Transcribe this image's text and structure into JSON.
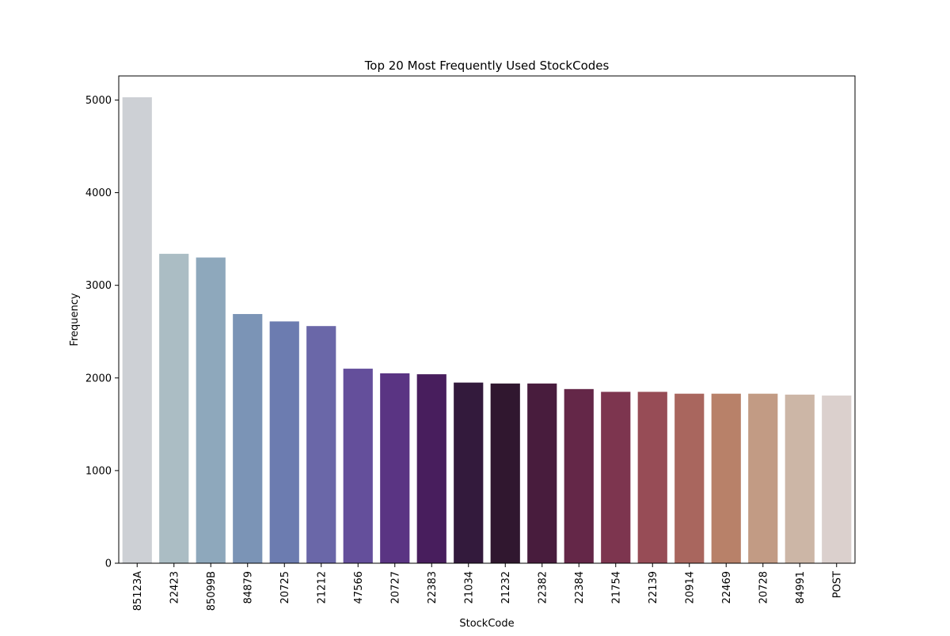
{
  "chart_data": {
    "type": "bar",
    "title": "Top 20 Most Frequently Used StockCodes",
    "xlabel": "StockCode",
    "ylabel": "Frequency",
    "ylim": [
      0,
      5260
    ],
    "yticks": [
      0,
      1000,
      2000,
      3000,
      4000,
      5000
    ],
    "grid": false,
    "legend": "none",
    "categories": [
      "85123A",
      "22423",
      "85099B",
      "84879",
      "20725",
      "21212",
      "47566",
      "20727",
      "22383",
      "21034",
      "21232",
      "22382",
      "22384",
      "21754",
      "22139",
      "20914",
      "22469",
      "20728",
      "84991",
      "POST"
    ],
    "values": [
      5030,
      3340,
      3300,
      2690,
      2610,
      2560,
      2100,
      2050,
      2040,
      1950,
      1940,
      1940,
      1880,
      1850,
      1850,
      1830,
      1830,
      1830,
      1820,
      1810
    ],
    "colors": [
      "#cdd0d5",
      "#abbdc4",
      "#8ea8bc",
      "#7b94b6",
      "#6c7cb0",
      "#6a67a8",
      "#644f9b",
      "#5a3483",
      "#481e5d",
      "#331a3c",
      "#30172f",
      "#481c3d",
      "#642748",
      "#7d354f",
      "#974c56",
      "#a9665e",
      "#b88169",
      "#c29b84",
      "#ccb6a6",
      "#dbd0cd"
    ]
  }
}
